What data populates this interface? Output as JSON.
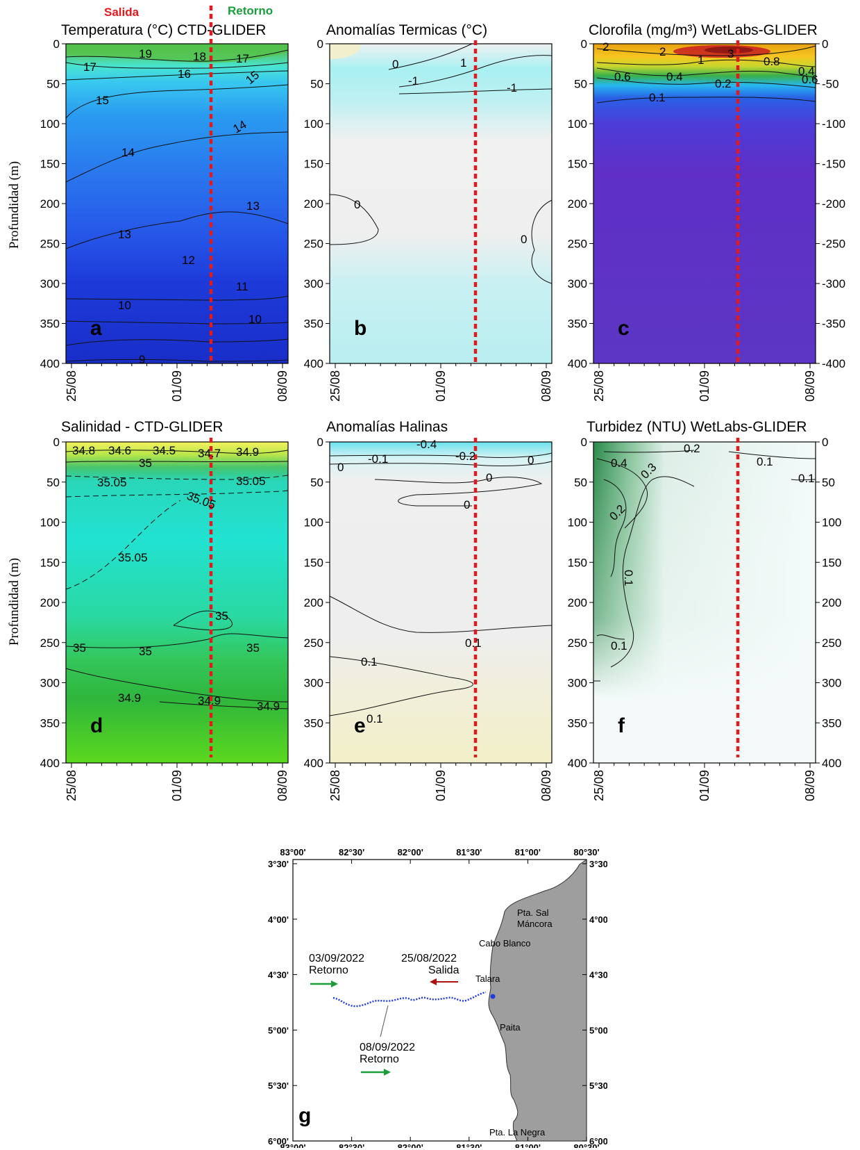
{
  "header": {
    "salida_label": "Salida",
    "retorno_label": "Retorno",
    "salida_color": "#e31a1c",
    "retorno_color": "#1a9e3a"
  },
  "common": {
    "ylabel": "Profundidad (m)",
    "x_ticks": [
      "25/08",
      "01/09",
      "08/09"
    ],
    "y_ticks": [
      0,
      50,
      100,
      150,
      200,
      250,
      300,
      350,
      400
    ],
    "y_ticks_right_neg": [
      "0",
      "-50",
      "-100",
      "-150",
      "-200",
      "-250",
      "-300",
      "-350",
      "-400"
    ],
    "y_ticks_right_pos": [
      "0",
      "50",
      "100",
      "150",
      "200",
      "250",
      "300",
      "350",
      "400"
    ],
    "marker_date": "03/09"
  },
  "panels": [
    {
      "id": "a",
      "title": "Temperatura (°C) CTD-GLIDER"
    },
    {
      "id": "b",
      "title": "Anomalías Termicas (°C)"
    },
    {
      "id": "c",
      "title": "Clorofila (mg/m³) WetLabs-GLIDER"
    },
    {
      "id": "d",
      "title": "Salinidad - CTD-GLIDER"
    },
    {
      "id": "e",
      "title": "Anomalías Halinas"
    },
    {
      "id": "f",
      "title": "Turbidez (NTU) WetLabs-GLIDER"
    }
  ],
  "chart_data": [
    {
      "type": "heatmap",
      "panel": "a",
      "title": "Temperatura (°C) CTD-GLIDER",
      "ylabel": "Profundidad (m)",
      "ylim": [
        400,
        0
      ],
      "x_ticks": [
        "25/08",
        "01/09",
        "08/09"
      ],
      "contour_labels": [
        "19",
        "18",
        "17",
        "17",
        "16",
        "15",
        "15",
        "14",
        "14",
        "13",
        "13",
        "12",
        "11",
        "10",
        "10",
        "9"
      ],
      "contours_depth_m": [
        {
          "level": 19,
          "depth": 8
        },
        {
          "level": 18,
          "depth": 15
        },
        {
          "level": 17,
          "depth": 25
        },
        {
          "level": 16,
          "depth": 38
        },
        {
          "level": 15,
          "depth": 70
        },
        {
          "level": 14,
          "depth": 130
        },
        {
          "level": 13,
          "depth": 230
        },
        {
          "level": 12,
          "depth": 275
        },
        {
          "level": 11,
          "depth": 305
        },
        {
          "level": 10,
          "depth": 345
        },
        {
          "level": 9,
          "depth": 392
        }
      ]
    },
    {
      "type": "heatmap",
      "panel": "b",
      "title": "Anomalías Termicas (°C)",
      "ylim": [
        400,
        0
      ],
      "x_ticks": [
        "25/08",
        "01/09",
        "08/09"
      ],
      "contour_labels": [
        "0",
        "1",
        "-1",
        "-1",
        "0",
        "0"
      ]
    },
    {
      "type": "heatmap",
      "panel": "c",
      "title": "Clorofila (mg/m³) WetLabs-GLIDER",
      "ylim": [
        400,
        0
      ],
      "x_ticks": [
        "25/08",
        "01/09",
        "08/09"
      ],
      "contour_labels": [
        "2",
        "2",
        "3",
        "1",
        "0.8",
        "0.4",
        "0.6",
        "0.4",
        "0.6",
        "0.2",
        "0.1"
      ]
    },
    {
      "type": "heatmap",
      "panel": "d",
      "title": "Salinidad - CTD-GLIDER",
      "ylabel": "Profundidad (m)",
      "ylim": [
        400,
        0
      ],
      "x_ticks": [
        "25/08",
        "01/09",
        "08/09"
      ],
      "contour_labels": [
        "34.8",
        "34.6",
        "34.5",
        "34.7",
        "34.9",
        "35",
        "35.05",
        "35.05",
        "35.05",
        "35.05",
        "35",
        "35",
        "35",
        "35",
        "34.9",
        "34.9",
        "34.9"
      ]
    },
    {
      "type": "heatmap",
      "panel": "e",
      "title": "Anomalías Halinas",
      "ylim": [
        400,
        0
      ],
      "x_ticks": [
        "25/08",
        "01/09",
        "08/09"
      ],
      "contour_labels": [
        "-0.4",
        "-0.1",
        "-0.2",
        "0",
        "0",
        "0",
        "0",
        "0.1",
        "0.1",
        "0.1"
      ]
    },
    {
      "type": "heatmap",
      "panel": "f",
      "title": "Turbidez (NTU) WetLabs-GLIDER",
      "ylim": [
        400,
        0
      ],
      "x_ticks": [
        "25/08",
        "01/09",
        "08/09"
      ],
      "contour_labels": [
        "0.2",
        "0.4",
        "0.3",
        "0.1",
        "0.1",
        "0.2",
        "0.1",
        "0.1"
      ]
    }
  ],
  "map": {
    "label": "g",
    "lon_ticks": [
      "83°00'",
      "82°30'",
      "82°00'",
      "81°30'",
      "81°00'",
      "80°30'"
    ],
    "lat_ticks": [
      "3°30'",
      "4°00'",
      "4°30'",
      "5°00'",
      "5°30'",
      "6°00'"
    ],
    "places": [
      "Pta. Sal",
      "Máncora",
      "Cabo Blanco",
      "Talara",
      "Paita",
      "Pta. La Negra"
    ],
    "annotations": [
      {
        "date": "03/09/2022",
        "text": "Retorno"
      },
      {
        "date": "25/08/2022",
        "text": "Salida"
      },
      {
        "date": "08/09/2022",
        "text": "Retorno"
      }
    ],
    "track_color": "#1f3bdc",
    "land_color": "#9e9e9e"
  }
}
